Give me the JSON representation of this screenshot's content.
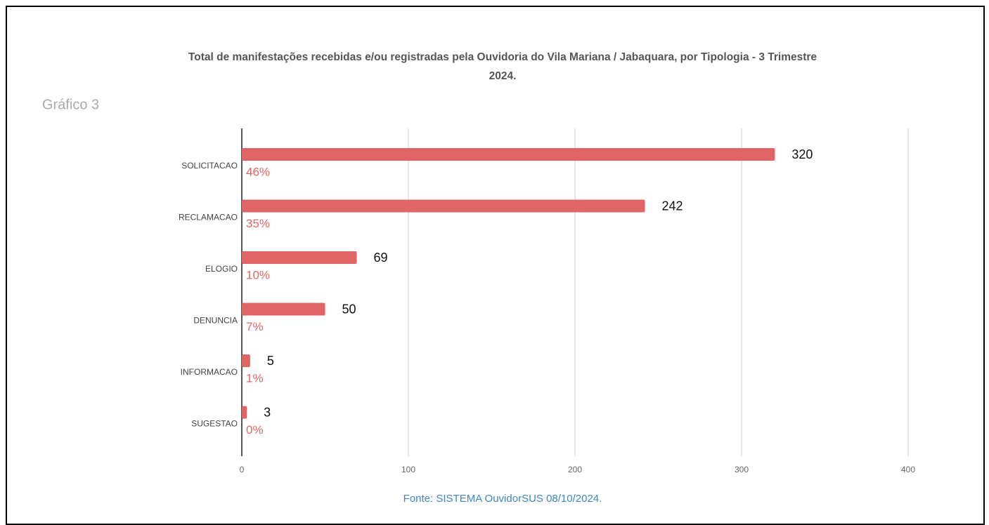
{
  "chart_data": {
    "type": "bar",
    "orientation": "horizontal",
    "title": "Total de manifestações recebidas e/ou registradas pela Ouvidoria do Vila Mariana / Jabaquara, por Tipologia - 3 Trimestre 2024.",
    "subtitle": "Gráfico 3",
    "categories": [
      "SOLICITACAO",
      "RECLAMACAO",
      "ELOGIO",
      "DENUNCIA",
      "INFORMACAO",
      "SUGESTAO"
    ],
    "values": [
      320,
      242,
      69,
      50,
      5,
      3
    ],
    "shares": [
      46,
      35,
      10,
      7,
      1,
      0
    ],
    "share_labels": [
      "46%",
      "35%",
      "10%",
      "7%",
      "1%",
      "0%"
    ],
    "color": "#e06666",
    "xlim": [
      0,
      400
    ],
    "xticks": [
      0,
      100,
      200,
      300,
      400
    ],
    "grid": true,
    "source": "Fonte: SISTEMA OuvidorSUS 08/10/2024."
  }
}
